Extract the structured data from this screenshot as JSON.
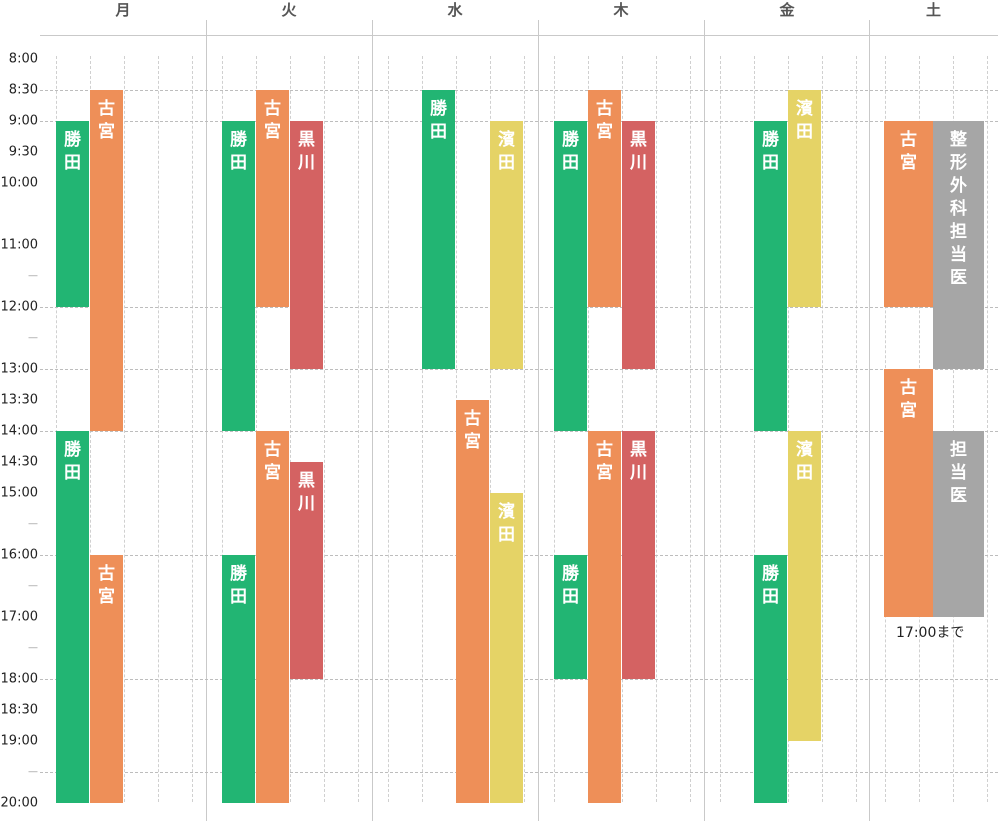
{
  "days": [
    "月",
    "火",
    "水",
    "木",
    "金",
    "土"
  ],
  "time_labels": [
    "8:00",
    "8:30",
    "9:00",
    "9:30",
    "10:00",
    "",
    "11:00",
    "—",
    "12:00",
    "—",
    "13:00",
    "13:30",
    "14:00",
    "14:30",
    "15:00",
    "—",
    "16:00",
    "—",
    "17:00",
    "—",
    "18:00",
    "18:30",
    "19:00",
    "—",
    "20:00"
  ],
  "colors": {
    "green": "#22b573",
    "orange": "#ee8f58",
    "red": "#d46262",
    "yellow": "#e5d366",
    "gray": "#a6a6a6"
  },
  "blocks": [
    {
      "id": "mon-katsuta-am",
      "day": 0,
      "col": 0,
      "start": "9:00",
      "end": "12:00",
      "color": "green",
      "label": "勝田"
    },
    {
      "id": "mon-komiya-am",
      "day": 0,
      "col": 1,
      "start": "8:30",
      "end": "14:00",
      "color": "orange",
      "label": "古宮"
    },
    {
      "id": "mon-katsuta-pm",
      "day": 0,
      "col": 0,
      "start": "14:00",
      "end": "20:00",
      "color": "green",
      "label": "勝田"
    },
    {
      "id": "mon-komiya-pm",
      "day": 0,
      "col": 1,
      "start": "16:00",
      "end": "20:00",
      "color": "orange",
      "label": "古宮"
    },
    {
      "id": "tue-katsuta-am",
      "day": 1,
      "col": 0,
      "start": "9:00",
      "end": "14:00",
      "color": "green",
      "label": "勝田"
    },
    {
      "id": "tue-komiya-am",
      "day": 1,
      "col": 1,
      "start": "8:30",
      "end": "12:00",
      "color": "orange",
      "label": "古宮"
    },
    {
      "id": "tue-kurokawa-am",
      "day": 1,
      "col": 2,
      "start": "9:00",
      "end": "13:00",
      "color": "red",
      "label": "黒川"
    },
    {
      "id": "tue-komiya-pm",
      "day": 1,
      "col": 1,
      "start": "14:00",
      "end": "20:00",
      "color": "orange",
      "label": "古宮"
    },
    {
      "id": "tue-kurokawa-pm",
      "day": 1,
      "col": 2,
      "start": "14:30",
      "end": "18:00",
      "color": "red",
      "label": "黒川"
    },
    {
      "id": "tue-katsuta-pm",
      "day": 1,
      "col": 0,
      "start": "16:00",
      "end": "20:00",
      "color": "green",
      "label": "勝田"
    },
    {
      "id": "wed-katsuta",
      "day": 2,
      "col": 1,
      "start": "8:30",
      "end": "13:00",
      "color": "green",
      "label": "勝田"
    },
    {
      "id": "wed-hamada-am",
      "day": 2,
      "col": 3,
      "start": "9:00",
      "end": "13:00",
      "color": "yellow",
      "label": "濱田"
    },
    {
      "id": "wed-komiya",
      "day": 2,
      "col": 2,
      "start": "13:30",
      "end": "20:00",
      "color": "orange",
      "label": "古宮"
    },
    {
      "id": "wed-hamada-pm",
      "day": 2,
      "col": 3,
      "start": "15:00",
      "end": "20:00",
      "color": "yellow",
      "label": "濱田"
    },
    {
      "id": "thu-katsuta-am",
      "day": 3,
      "col": 0,
      "start": "9:00",
      "end": "14:00",
      "color": "green",
      "label": "勝田"
    },
    {
      "id": "thu-komiya-am",
      "day": 3,
      "col": 1,
      "start": "8:30",
      "end": "12:00",
      "color": "orange",
      "label": "古宮"
    },
    {
      "id": "thu-kurokawa-am",
      "day": 3,
      "col": 2,
      "start": "9:00",
      "end": "13:00",
      "color": "red",
      "label": "黒川"
    },
    {
      "id": "thu-komiya-pm",
      "day": 3,
      "col": 1,
      "start": "14:00",
      "end": "20:00",
      "color": "orange",
      "label": "古宮"
    },
    {
      "id": "thu-kurokawa-pm",
      "day": 3,
      "col": 2,
      "start": "14:00",
      "end": "18:00",
      "color": "red",
      "label": "黒川"
    },
    {
      "id": "thu-katsuta-pm",
      "day": 3,
      "col": 0,
      "start": "16:00",
      "end": "18:00",
      "color": "green",
      "label": "勝田"
    },
    {
      "id": "fri-katsuta-am",
      "day": 4,
      "col": 1,
      "start": "9:00",
      "end": "14:00",
      "color": "green",
      "label": "勝田"
    },
    {
      "id": "fri-hamada-am",
      "day": 4,
      "col": 2,
      "start": "8:30",
      "end": "12:00",
      "color": "yellow",
      "label": "濱田"
    },
    {
      "id": "fri-hamada-pm",
      "day": 4,
      "col": 2,
      "start": "14:00",
      "end": "19:00",
      "color": "yellow",
      "label": "濱田"
    },
    {
      "id": "fri-katsuta-pm",
      "day": 4,
      "col": 1,
      "start": "16:00",
      "end": "20:00",
      "color": "green",
      "label": "勝田"
    },
    {
      "id": "sat-komiya-am",
      "day": 5,
      "col": "a",
      "start": "9:00",
      "end": "12:00",
      "color": "orange",
      "label": "古宮"
    },
    {
      "id": "sat-ortho",
      "day": 5,
      "col": "b",
      "start": "9:00",
      "end": "13:00",
      "color": "gray",
      "label": "整形外科担当医"
    },
    {
      "id": "sat-komiya-pm",
      "day": 5,
      "col": "a",
      "start": "13:00",
      "end": "17:00",
      "color": "orange",
      "label": "古宮"
    },
    {
      "id": "sat-tantoui",
      "day": 5,
      "col": "b",
      "start": "14:00",
      "end": "17:00",
      "color": "gray",
      "label": "担当医"
    }
  ],
  "saturday_note": "17:00まで"
}
